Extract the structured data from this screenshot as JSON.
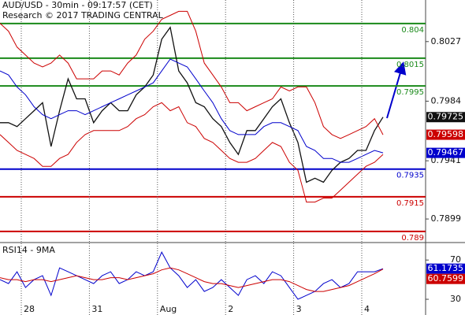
{
  "chart_data": [
    {
      "type": "line",
      "title": "AUD/USD - 30min - 09:17:57 (CET)",
      "subtitle": "Research © 2017 TRADING CENTRAL",
      "x": [
        0,
        6,
        12,
        18,
        24,
        30,
        36,
        42,
        48,
        54,
        60,
        66,
        72,
        78,
        84,
        90,
        96,
        102,
        108,
        114,
        120,
        126,
        132,
        138,
        144,
        150,
        156,
        162,
        168,
        174,
        180,
        186,
        192,
        198,
        204,
        210,
        216,
        222,
        228,
        234,
        240,
        246,
        252,
        258,
        264,
        270
      ],
      "xlim": [
        0,
        300
      ],
      "ylim": [
        0.7882,
        0.8057
      ],
      "yticks": [
        0.7899,
        0.7941,
        0.7984,
        0.8027
      ],
      "series": [
        {
          "color": "#111111",
          "label_last": true,
          "values": [
            0.79685,
            0.79685,
            0.79657,
            0.79714,
            0.79771,
            0.79829,
            0.79513,
            0.79771,
            0.80001,
            0.79857,
            0.79857,
            0.79685,
            0.79771,
            0.79829,
            0.79771,
            0.79771,
            0.79886,
            0.79943,
            0.80029,
            0.80287,
            0.80373,
            0.80058,
            0.79972,
            0.79829,
            0.798,
            0.79714,
            0.79657,
            0.79542,
            0.79456,
            0.79628,
            0.79628,
            0.79714,
            0.798,
            0.79857,
            0.79685,
            0.79542,
            0.79255,
            0.79284,
            0.79255,
            0.79341,
            0.79399,
            0.79427,
            0.79485,
            0.79485,
            0.79628,
            0.79725
          ]
        },
        {
          "color": "#cc0000",
          "label_last": true,
          "values": [
            0.80402,
            0.80345,
            0.8023,
            0.80173,
            0.80115,
            0.80087,
            0.80115,
            0.80173,
            0.80115,
            0.80001,
            0.80001,
            0.80001,
            0.80058,
            0.80058,
            0.80029,
            0.80115,
            0.80173,
            0.80287,
            0.80345,
            0.80431,
            0.80459,
            0.80488,
            0.80488,
            0.80345,
            0.80115,
            0.80029,
            0.79943,
            0.79829,
            0.79829,
            0.79771,
            0.798,
            0.79829,
            0.79857,
            0.79943,
            0.79914,
            0.79943,
            0.79943,
            0.79829,
            0.79657,
            0.79599,
            0.79571,
            0.79599,
            0.79628,
            0.79657,
            0.79714,
            0.79598
          ]
        },
        {
          "color": "#cc0000",
          "label_last": false,
          "values": [
            0.79599,
            0.79542,
            0.79485,
            0.79456,
            0.79427,
            0.7937,
            0.7937,
            0.79427,
            0.79456,
            0.79542,
            0.79599,
            0.79628,
            0.79628,
            0.79628,
            0.79628,
            0.79657,
            0.79714,
            0.79743,
            0.798,
            0.79829,
            0.79771,
            0.798,
            0.79685,
            0.79657,
            0.79571,
            0.79542,
            0.79485,
            0.79427,
            0.79399,
            0.79399,
            0.79427,
            0.79485,
            0.79542,
            0.79513,
            0.79399,
            0.79341,
            0.79112,
            0.79112,
            0.79141,
            0.79141,
            0.79198,
            0.79255,
            0.79313,
            0.7937,
            0.79399,
            0.79456
          ]
        },
        {
          "color": "#0000cc",
          "label_last": true,
          "values": [
            0.80058,
            0.80029,
            0.79943,
            0.79886,
            0.798,
            0.79743,
            0.79714,
            0.79743,
            0.79771,
            0.79771,
            0.79743,
            0.79771,
            0.798,
            0.79829,
            0.79857,
            0.79886,
            0.79914,
            0.79943,
            0.79972,
            0.80058,
            0.80144,
            0.80115,
            0.80087,
            0.80001,
            0.79914,
            0.79829,
            0.79714,
            0.79628,
            0.79599,
            0.79599,
            0.79599,
            0.79657,
            0.79685,
            0.79685,
            0.79657,
            0.79628,
            0.79513,
            0.79485,
            0.79427,
            0.79427,
            0.79399,
            0.79399,
            0.79427,
            0.79456,
            0.79485,
            0.79467
          ]
        }
      ],
      "levels": [
        {
          "value": 0.804,
          "color": "#1a8a1a"
        },
        {
          "value": 0.8015,
          "color": "#1a8a1a"
        },
        {
          "value": 0.7995,
          "color": "#1a8a1a"
        },
        {
          "value": 0.7935,
          "color": "#0000cc"
        },
        {
          "value": 0.7915,
          "color": "#cc0000"
        },
        {
          "value": 0.789,
          "color": "#cc0000"
        }
      ]
    },
    {
      "type": "line",
      "title": "RSI14 - 9MA",
      "x": [
        0,
        6,
        12,
        18,
        24,
        30,
        36,
        42,
        48,
        54,
        60,
        66,
        72,
        78,
        84,
        90,
        96,
        102,
        108,
        114,
        120,
        126,
        132,
        138,
        144,
        150,
        156,
        162,
        168,
        174,
        180,
        186,
        192,
        198,
        204,
        210,
        216,
        222,
        228,
        234,
        240,
        246,
        252,
        258,
        264,
        270
      ],
      "xlim": [
        0,
        300
      ],
      "xticks": [
        {
          "value": 15,
          "label": "28"
        },
        {
          "value": 63,
          "label": "31"
        },
        {
          "value": 111,
          "label": "Aug"
        },
        {
          "value": 159,
          "label": "2"
        },
        {
          "value": 207,
          "label": "3"
        },
        {
          "value": 255,
          "label": "4"
        }
      ],
      "ylim": [
        18,
        87
      ],
      "yticks": [
        30,
        70
      ],
      "series": [
        {
          "color": "#0000cc",
          "label_last": true,
          "values": [
            50,
            46,
            58,
            42,
            50,
            54,
            34,
            62,
            58,
            54,
            50,
            46,
            54,
            58,
            46,
            50,
            58,
            54,
            58,
            78,
            62,
            54,
            42,
            50,
            38,
            42,
            50,
            42,
            34,
            50,
            54,
            46,
            58,
            54,
            42,
            30,
            34,
            38,
            46,
            50,
            42,
            46,
            58,
            58,
            58,
            61.1735
          ]
        },
        {
          "color": "#cc0000",
          "label_last": true,
          "values": [
            52,
            50,
            50,
            48,
            50,
            50,
            48,
            50,
            52,
            54,
            52,
            50,
            50,
            52,
            52,
            50,
            52,
            54,
            56,
            60,
            62,
            60,
            56,
            52,
            48,
            46,
            46,
            44,
            42,
            44,
            46,
            48,
            50,
            50,
            48,
            44,
            40,
            38,
            38,
            40,
            42,
            44,
            48,
            52,
            56,
            60.7599
          ]
        }
      ]
    }
  ]
}
